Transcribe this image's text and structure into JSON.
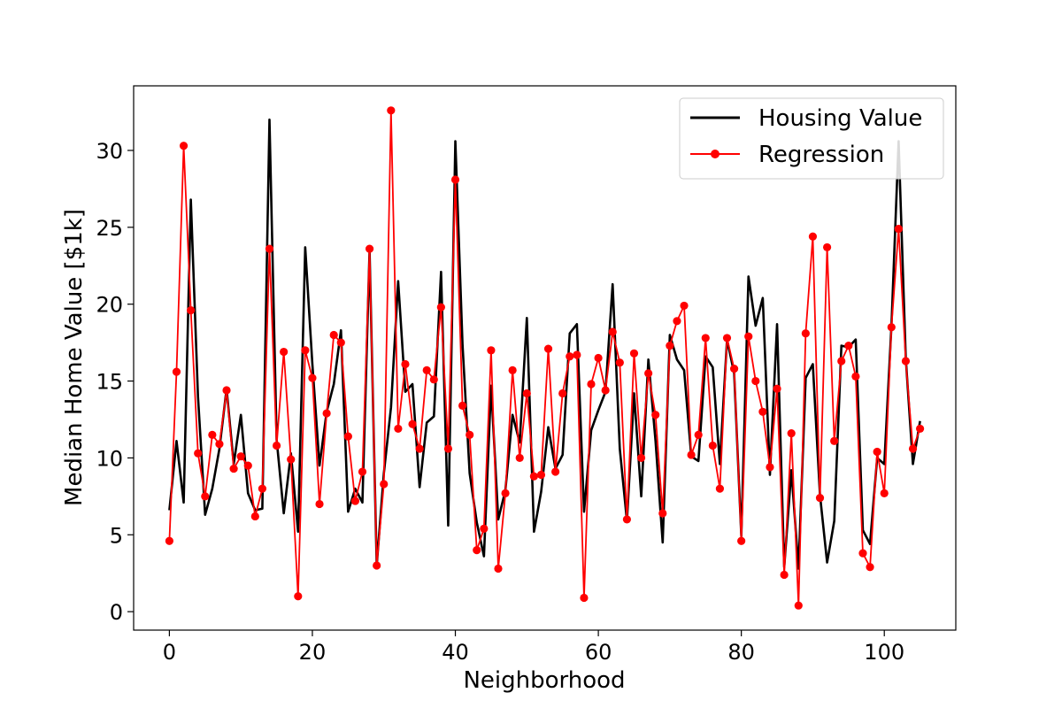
{
  "chart_data": {
    "type": "line",
    "title": "",
    "xlabel": "Neighborhood",
    "ylabel": "Median Home Value [$1k]",
    "xlim": [
      -5,
      110
    ],
    "ylim": [
      -1.2,
      34.2
    ],
    "xticks": [
      0,
      20,
      40,
      60,
      80,
      100
    ],
    "yticks": [
      0,
      5,
      10,
      15,
      20,
      25,
      30
    ],
    "grid": false,
    "legend_position": "top-right",
    "series": [
      {
        "name": "Housing Value",
        "color": "#000000",
        "marker": "none",
        "values": [
          6.6,
          11.1,
          7.1,
          26.8,
          14.0,
          6.3,
          8.0,
          10.6,
          14.5,
          9.6,
          12.8,
          7.7,
          6.6,
          6.7,
          32.0,
          11.2,
          6.4,
          10.3,
          5.2,
          23.7,
          16.1,
          9.5,
          13.0,
          14.8,
          18.3,
          6.5,
          8.0,
          7.1,
          23.5,
          3.0,
          9.0,
          13.3,
          21.5,
          14.3,
          14.8,
          8.1,
          12.3,
          12.7,
          22.1,
          5.6,
          30.6,
          17.4,
          9.0,
          5.8,
          3.6,
          14.7,
          6.0,
          7.9,
          12.8,
          11.0,
          19.1,
          5.2,
          7.8,
          12.0,
          9.3,
          10.2,
          18.1,
          18.7,
          6.5,
          11.8,
          13.1,
          14.3,
          21.3,
          10.6,
          5.9,
          14.2,
          7.5,
          16.4,
          11.1,
          4.5,
          18.0,
          16.4,
          15.7,
          10.1,
          9.8,
          16.6,
          15.9,
          9.6,
          17.7,
          15.5,
          4.9,
          21.8,
          18.6,
          20.4,
          8.9,
          18.7,
          2.9,
          9.2,
          2.8,
          15.2,
          16.1,
          7.6,
          3.2,
          5.9,
          17.3,
          17.2,
          17.7,
          5.3,
          4.4,
          10.0,
          9.6,
          18.6,
          30.6,
          16.5,
          9.6,
          12.4
        ]
      },
      {
        "name": "Regression",
        "color": "#ff0000",
        "marker": "circle",
        "values": [
          4.6,
          15.6,
          30.3,
          19.6,
          10.3,
          7.5,
          11.5,
          10.9,
          14.4,
          9.3,
          10.1,
          9.5,
          6.2,
          8.0,
          23.6,
          10.8,
          16.9,
          9.9,
          1.0,
          17.0,
          15.2,
          7.0,
          12.9,
          18.0,
          17.5,
          11.4,
          7.2,
          9.1,
          23.6,
          3.0,
          8.3,
          32.6,
          11.9,
          16.1,
          12.2,
          10.6,
          15.7,
          15.1,
          19.8,
          10.6,
          28.1,
          13.4,
          11.5,
          4.0,
          5.4,
          17.0,
          2.8,
          7.7,
          15.7,
          10.0,
          14.2,
          8.8,
          8.9,
          17.1,
          9.1,
          14.2,
          16.6,
          16.7,
          0.9,
          14.8,
          16.5,
          14.4,
          18.2,
          16.2,
          6.0,
          16.8,
          10.0,
          15.5,
          12.8,
          6.4,
          17.3,
          18.9,
          19.9,
          10.2,
          11.5,
          17.8,
          10.8,
          8.0,
          17.8,
          15.8,
          4.6,
          17.9,
          15.0,
          13.0,
          9.4,
          14.5,
          2.4,
          11.6,
          0.4,
          18.1,
          24.4,
          7.4,
          23.7,
          11.1,
          16.3,
          17.3,
          15.3,
          3.8,
          2.9,
          10.4,
          7.7,
          18.5,
          24.9,
          16.3,
          10.6,
          11.9
        ]
      }
    ]
  }
}
